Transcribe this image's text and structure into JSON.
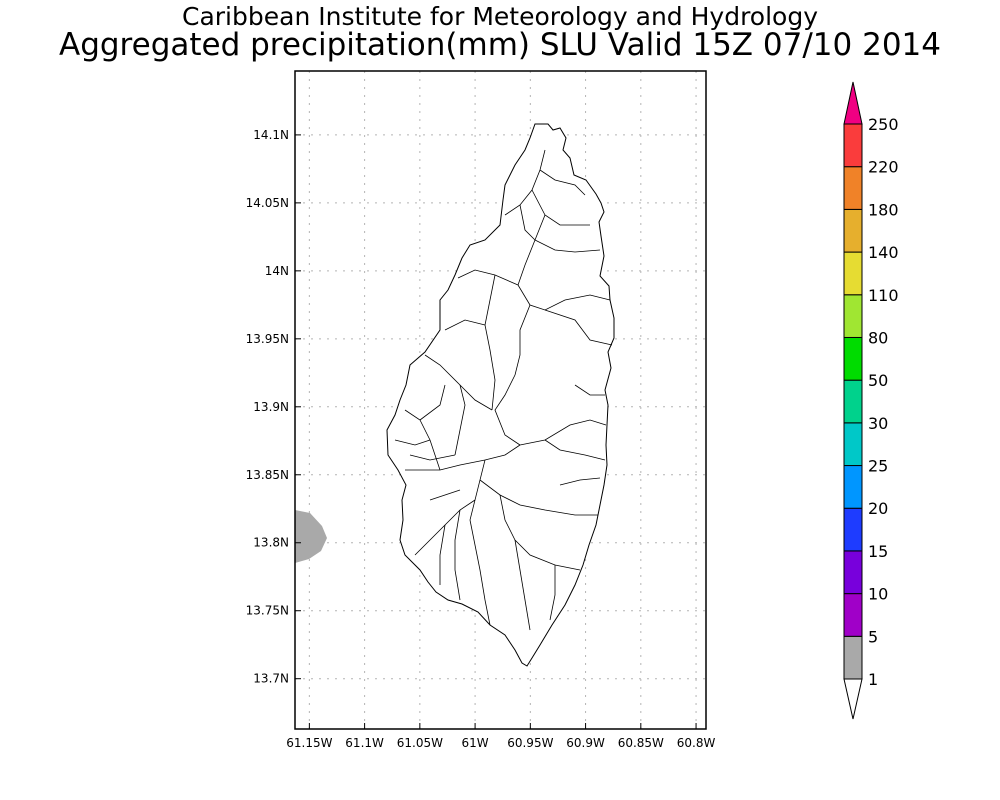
{
  "header": {
    "title": "Caribbean Institute for Meteorology and Hydrology",
    "subtitle": "Aggregated precipitation(mm) SLU Valid 15Z 07/10 2014"
  },
  "map": {
    "region": "Saint Lucia",
    "lon_range": [
      -61.163,
      -60.791
    ],
    "lat_range": [
      13.663,
      14.147
    ],
    "grid": true,
    "x_ticks": [
      {
        "value": -61.15,
        "label": "61.15W"
      },
      {
        "value": -61.1,
        "label": "61.1W"
      },
      {
        "value": -61.05,
        "label": "61.05W"
      },
      {
        "value": -61.0,
        "label": "61W"
      },
      {
        "value": -60.95,
        "label": "60.95W"
      },
      {
        "value": -60.9,
        "label": "60.9W"
      },
      {
        "value": -60.85,
        "label": "60.85W"
      },
      {
        "value": -60.8,
        "label": "60.8W"
      }
    ],
    "y_ticks": [
      {
        "value": 14.1,
        "label": "14.1N"
      },
      {
        "value": 14.05,
        "label": "14.05N"
      },
      {
        "value": 14.0,
        "label": "14N"
      },
      {
        "value": 13.95,
        "label": "13.95N"
      },
      {
        "value": 13.9,
        "label": "13.9N"
      },
      {
        "value": 13.85,
        "label": "13.85N"
      },
      {
        "value": 13.8,
        "label": "13.8N"
      },
      {
        "value": 13.75,
        "label": "13.75N"
      },
      {
        "value": 13.7,
        "label": "13.7N"
      }
    ],
    "precip_area": {
      "range_mm": "1-5",
      "color": "#a9a9a9",
      "lon_edge": -61.163,
      "lat_span": [
        13.785,
        13.825
      ]
    }
  },
  "colorbar": {
    "levels": [
      "1",
      "5",
      "10",
      "15",
      "20",
      "25",
      "30",
      "50",
      "80",
      "110",
      "140",
      "180",
      "220",
      "250"
    ],
    "colors": [
      "#a9a9a9",
      "#a000c8",
      "#7800dc",
      "#1e3cff",
      "#0096ff",
      "#00c8c8",
      "#00d28c",
      "#00dc00",
      "#a0e632",
      "#e6dc32",
      "#e6af2d",
      "#f08228",
      "#fa3c3c",
      "#f00082"
    ],
    "under_color": "#ffffff"
  }
}
